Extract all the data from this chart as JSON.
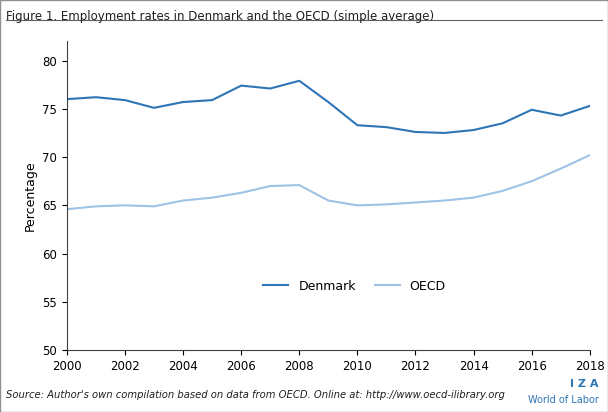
{
  "title": "Figure 1. Employment rates in Denmark and the OECD (simple average)",
  "ylabel": "Percentage",
  "source_prefix": "Source: ",
  "source_body": "Author's own compilation based on data from OECD. Online at: http://www.oecd-ilibrary.org",
  "iza_line1": "I Z A",
  "iza_line2": "World of Labor",
  "years": [
    2000,
    2001,
    2002,
    2003,
    2004,
    2005,
    2006,
    2007,
    2008,
    2009,
    2010,
    2011,
    2012,
    2013,
    2014,
    2015,
    2016,
    2017,
    2018
  ],
  "denmark": [
    76.0,
    76.2,
    75.9,
    75.1,
    75.7,
    75.9,
    77.4,
    77.1,
    77.9,
    75.7,
    73.3,
    73.1,
    72.6,
    72.5,
    72.8,
    73.5,
    74.9,
    74.3,
    75.3
  ],
  "oecd": [
    64.6,
    64.9,
    65.0,
    64.9,
    65.5,
    65.8,
    66.3,
    67.0,
    67.1,
    65.5,
    65.0,
    65.1,
    65.3,
    65.5,
    65.8,
    66.5,
    67.5,
    68.8,
    70.2
  ],
  "denmark_color": "#2e75b6",
  "oecd_color": "#9dc3e6",
  "ylim": [
    50,
    82
  ],
  "yticks": [
    50,
    55,
    60,
    65,
    70,
    75,
    80
  ],
  "xticks": [
    2000,
    2002,
    2004,
    2006,
    2008,
    2010,
    2012,
    2014,
    2016,
    2018
  ],
  "xlim": [
    2000,
    2018
  ],
  "bg_color": "#ffffff",
  "border_color": "#404040",
  "legend_denmark": "Denmark",
  "legend_oecd": "OECD"
}
